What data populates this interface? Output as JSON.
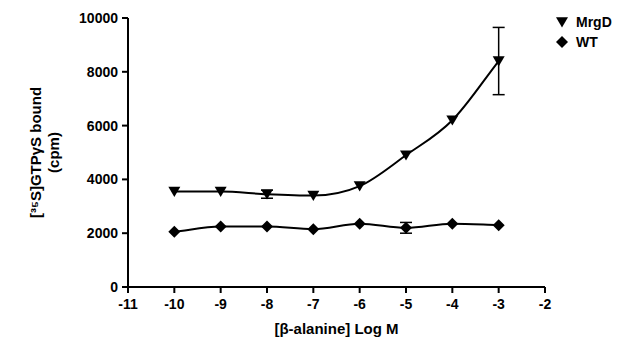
{
  "chart_data": {
    "type": "line",
    "x_label": "[β-alanine] Log M",
    "y_label": "[³⁵S]GTPγS bound\n(cpm)",
    "x": [
      -10,
      -9,
      -8,
      -7,
      -6,
      -5,
      -4,
      -3
    ],
    "series": [
      {
        "name": "MrgD",
        "color": "#000000",
        "marker": "triangle-down",
        "line_style": "solid",
        "values": [
          3550,
          3550,
          3450,
          3400,
          3750,
          4900,
          6200,
          8400
        ],
        "errors": [
          null,
          null,
          150,
          null,
          null,
          null,
          null,
          1250
        ]
      },
      {
        "name": "WT",
        "color": "#000000",
        "marker": "diamond",
        "line_style": "solid",
        "values": [
          2050,
          2250,
          2250,
          2150,
          2350,
          2200,
          2350,
          2300
        ],
        "errors": [
          null,
          null,
          null,
          null,
          null,
          200,
          null,
          null
        ]
      }
    ],
    "xlim": [
      -11,
      -2
    ],
    "xticks": [
      -11,
      -10,
      -9,
      -8,
      -7,
      -6,
      -5,
      -4,
      -3,
      -2
    ],
    "ylim": [
      0,
      10000
    ],
    "yticks": [
      0,
      2000,
      4000,
      6000,
      8000,
      10000
    ],
    "grid": false,
    "legend": "top-right"
  }
}
